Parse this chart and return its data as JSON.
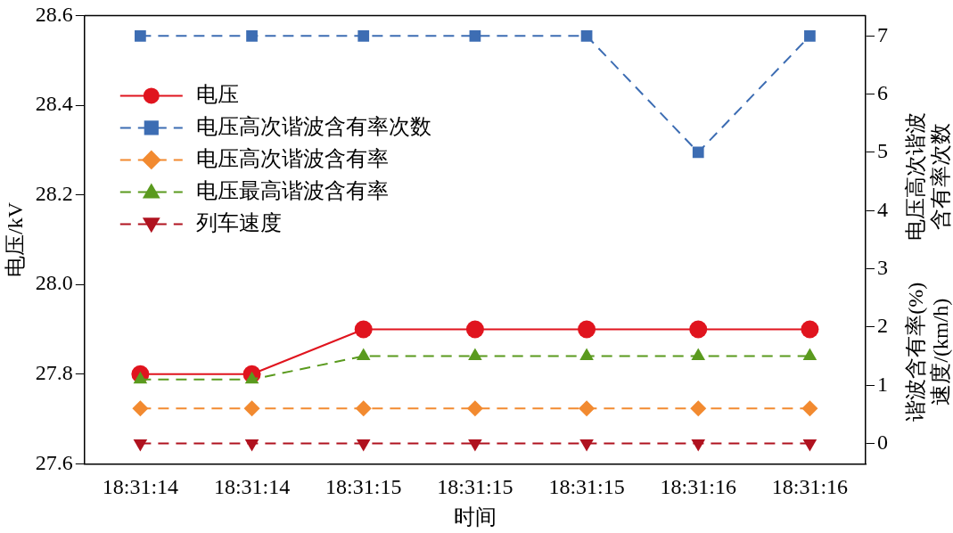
{
  "chart_data": {
    "type": "line",
    "xlabel": "时间",
    "ylabel": "电压/kV",
    "y2label": "电压高次谐波含有率次数",
    "annotations": [
      "谐波含有率(%)",
      "速度/(km/h)"
    ],
    "categories": [
      "18:31:14",
      "18:31:14",
      "18:31:15",
      "18:31:15",
      "18:31:15",
      "18:31:16",
      "18:31:16"
    ],
    "ylim": [
      27.6,
      28.6
    ],
    "yticks": [
      {
        "value": 27.6,
        "label": "27.6"
      },
      {
        "value": 27.8,
        "label": "27.8"
      },
      {
        "value": 28.0,
        "label": "28.0"
      },
      {
        "value": 28.2,
        "label": "28.2"
      },
      {
        "value": 28.4,
        "label": "28.4"
      },
      {
        "value": 28.6,
        "label": "28.6"
      }
    ],
    "y2lim": [
      -0.35,
      7.35
    ],
    "y2ticks": [
      0,
      1,
      2,
      3,
      4,
      5,
      6,
      7
    ],
    "grid": false,
    "legend": "top left",
    "series": [
      {
        "name": "电压",
        "color": "#e0141e",
        "values": [
          27.8,
          27.8,
          27.9,
          27.9,
          27.9,
          27.9,
          27.9
        ],
        "marker": "circle",
        "line_style": "solid"
      },
      {
        "name": "电压高次谐波含有率次数",
        "color": "#3d6db3",
        "values": [
          7,
          7,
          7,
          7,
          7,
          5,
          7
        ],
        "axis": "y2",
        "marker": "square",
        "line_style": "dashed"
      },
      {
        "name": "电压高次谐波含有率",
        "color": "#f28a30",
        "values": [
          0.6,
          0.6,
          0.6,
          0.6,
          0.6,
          0.6,
          0.6
        ],
        "axis": "y2",
        "marker": "diamond",
        "line_style": "dashed"
      },
      {
        "name": "电压最高谐波含有率",
        "color": "#5a9a1e",
        "values": [
          1.1,
          1.1,
          1.5,
          1.5,
          1.5,
          1.5,
          1.5
        ],
        "axis": "y2",
        "marker": "triangle",
        "line_style": "dashed"
      },
      {
        "name": "列车速度",
        "color": "#b0121f",
        "values": [
          0,
          0,
          0,
          0,
          0,
          0,
          0
        ],
        "axis": "y2",
        "marker": "triangle-down",
        "line_style": "dashed"
      }
    ]
  }
}
